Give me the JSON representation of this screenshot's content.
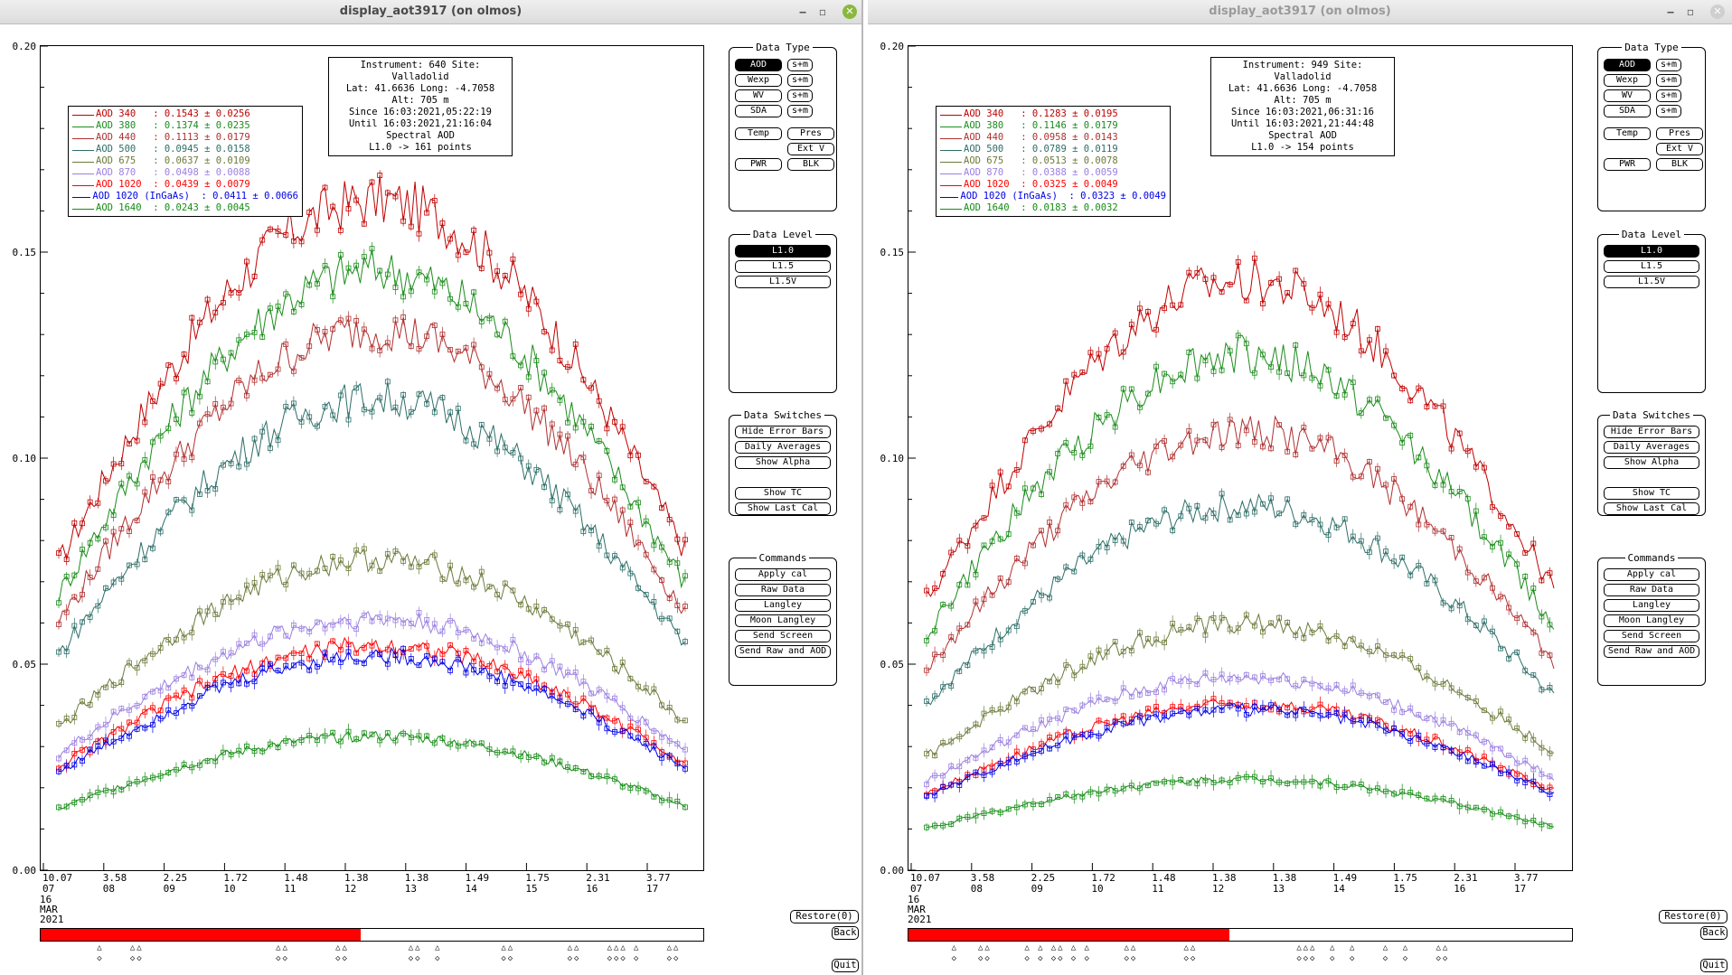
{
  "windows": [
    {
      "title": "display_aot3917 (on olmos)",
      "buttons": {
        "minimize": "‒",
        "maximize": "▫",
        "close": "✕"
      },
      "info": [
        "Instrument: 640 Site: Valladolid",
        "Lat: 41.6636 Long: -4.7058 Alt: 705 m",
        "Since 16:03:2021,05:22:19",
        "Until 16:03:2021,21:16:04",
        "Spectral AOD",
        "L1.0 -> 161 points"
      ],
      "legend": [
        {
          "label": "AOD 340   : 0.1543 ± 0.0256",
          "color": "#c00000"
        },
        {
          "label": "AOD 380   : 0.1374 ± 0.0235",
          "color": "#1a8c1a"
        },
        {
          "label": "AOD 440   : 0.1113 ± 0.0179",
          "color": "#b03030"
        },
        {
          "label": "AOD 500   : 0.0945 ± 0.0158",
          "color": "#2d6e68"
        },
        {
          "label": "AOD 675   : 0.0637 ± 0.0109",
          "color": "#6b7a3a"
        },
        {
          "label": "AOD 870   : 0.0498 ± 0.0088",
          "color": "#9b7fe0"
        },
        {
          "label": "AOD 1020  : 0.0439 ± 0.0079",
          "color": "#ff0000"
        },
        {
          "label": "AOD 1020 (InGaAs)  : 0.0411 ± 0.0066",
          "color": "#0000e6"
        },
        {
          "label": "AOD 1640  : 0.0243 ± 0.0045",
          "color": "#138c13"
        }
      ],
      "series_levels": [
        0.125,
        0.112,
        0.101,
        0.088,
        0.058,
        0.047,
        0.042,
        0.04,
        0.025
      ],
      "marks": [
        0.09,
        0.14,
        0.15,
        0.36,
        0.37,
        0.45,
        0.46,
        0.56,
        0.57,
        0.6,
        0.7,
        0.71,
        0.8,
        0.81,
        0.86,
        0.87,
        0.88,
        0.9,
        0.95,
        0.96
      ]
    },
    {
      "title": "display_aot3917 (on olmos)",
      "buttons": {
        "minimize": "‒",
        "maximize": "▫",
        "close": "✕"
      },
      "info": [
        "Instrument: 949 Site: Valladolid",
        "Lat: 41.6636 Long: -4.7058 Alt: 705 m",
        "Since 16:03:2021,06:31:16",
        "Until 16:03:2021,21:44:48",
        "Spectral AOD",
        "L1.0 -> 154 points"
      ],
      "legend": [
        {
          "label": "AOD 340   : 0.1283 ± 0.0195",
          "color": "#c00000"
        },
        {
          "label": "AOD 380   : 0.1146 ± 0.0179",
          "color": "#1a8c1a"
        },
        {
          "label": "AOD 440   : 0.0958 ± 0.0143",
          "color": "#b03030"
        },
        {
          "label": "AOD 500   : 0.0789 ± 0.0119",
          "color": "#2d6e68"
        },
        {
          "label": "AOD 675   : 0.0513 ± 0.0078",
          "color": "#6b7a3a"
        },
        {
          "label": "AOD 870   : 0.0388 ± 0.0059",
          "color": "#9b7fe0"
        },
        {
          "label": "AOD 1020  : 0.0325 ± 0.0049",
          "color": "#ff0000"
        },
        {
          "label": "AOD 1020 (InGaAs)  : 0.0323 ± 0.0049",
          "color": "#0000e6"
        },
        {
          "label": "AOD 1640  : 0.0183 ± 0.0032",
          "color": "#138c13"
        }
      ],
      "series_levels": [
        0.11,
        0.096,
        0.082,
        0.068,
        0.046,
        0.036,
        0.031,
        0.03,
        0.017
      ],
      "marks": [
        0.07,
        0.11,
        0.12,
        0.18,
        0.2,
        0.22,
        0.23,
        0.25,
        0.27,
        0.33,
        0.34,
        0.42,
        0.43,
        0.59,
        0.6,
        0.61,
        0.64,
        0.67,
        0.72,
        0.75,
        0.8,
        0.81
      ]
    }
  ],
  "axis": {
    "y_ticks": [
      "0.20",
      "0.15",
      "0.10",
      "0.05",
      "0.00"
    ],
    "x_ticks": [
      {
        "value": "10.07",
        "day": "07"
      },
      {
        "value": "3.58",
        "day": "08"
      },
      {
        "value": "2.25",
        "day": "09"
      },
      {
        "value": "1.72",
        "day": "10"
      },
      {
        "value": "1.48",
        "day": "11"
      },
      {
        "value": "1.38",
        "day": "12"
      },
      {
        "value": "1.38",
        "day": "13"
      },
      {
        "value": "1.49",
        "day": "14"
      },
      {
        "value": "1.75",
        "day": "15"
      },
      {
        "value": "2.31",
        "day": "16"
      },
      {
        "value": "3.77",
        "day": "17"
      }
    ],
    "date_stack": [
      "07",
      "16",
      "MAR",
      "2021"
    ]
  },
  "side_panel": {
    "data_type": {
      "title": "Data Type",
      "rows": [
        {
          "label": "AOD",
          "extra": "s+m",
          "selected": true
        },
        {
          "label": "Wexp",
          "extra": "s+m"
        },
        {
          "label": "WV",
          "extra": "s+m"
        },
        {
          "label": "SDA",
          "extra": "s+m"
        }
      ],
      "temp": "Temp",
      "pres": "Pres",
      "extv": "Ext V",
      "pwr": "PWR",
      "blk": "BLK"
    },
    "data_level": {
      "title": "Data Level",
      "items": [
        "L1.0",
        "L1.5",
        "L1.5V"
      ]
    },
    "data_switches": {
      "title": "Data Switches",
      "items": [
        "Hide Error Bars",
        "Daily Averages",
        "Show Alpha",
        "Show TC",
        "Show Last Cal"
      ]
    },
    "commands": {
      "title": "Commands",
      "items": [
        "Apply cal",
        "Raw Data",
        "Langley",
        "Moon Langley",
        "Send Screen",
        "Send Raw and AOD"
      ]
    },
    "restore": "Restore(0)",
    "back": "Back",
    "quit": "Quit"
  },
  "scroll": {
    "fill_fraction": 0.483
  },
  "mark_glyphs": {
    "top": "△",
    "bottom": "◇"
  }
}
